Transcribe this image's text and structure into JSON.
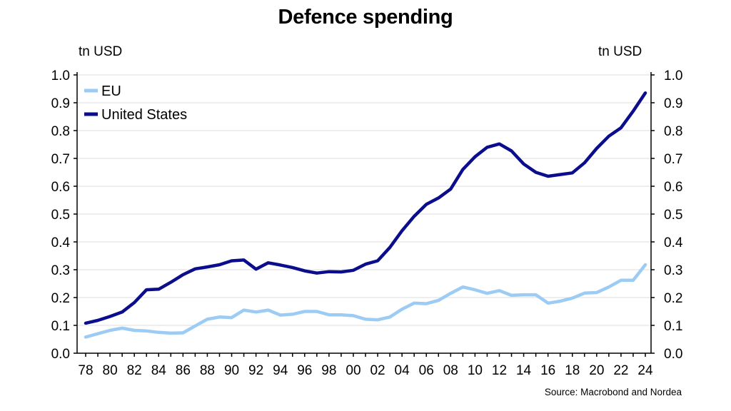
{
  "chart_data": {
    "type": "line",
    "title": "Defence spending",
    "ylabel_left": "tn USD",
    "ylabel_right": "tn USD",
    "source": "Source: Macrobond and Nordea",
    "ylim": [
      0.0,
      1.0
    ],
    "yticks": [
      "0.0",
      "0.1",
      "0.2",
      "0.3",
      "0.4",
      "0.5",
      "0.6",
      "0.7",
      "0.8",
      "0.9",
      "1.0"
    ],
    "xticks": [
      "78",
      "80",
      "82",
      "84",
      "86",
      "88",
      "90",
      "92",
      "94",
      "96",
      "98",
      "00",
      "02",
      "04",
      "06",
      "08",
      "10",
      "12",
      "14",
      "16",
      "18",
      "20",
      "22",
      "24"
    ],
    "grid": true,
    "legend": "top-left",
    "x": [
      1978,
      1979,
      1980,
      1981,
      1982,
      1983,
      1984,
      1985,
      1986,
      1987,
      1988,
      1989,
      1990,
      1991,
      1992,
      1993,
      1994,
      1995,
      1996,
      1997,
      1998,
      1999,
      2000,
      2001,
      2002,
      2003,
      2004,
      2005,
      2006,
      2007,
      2008,
      2009,
      2010,
      2011,
      2012,
      2013,
      2014,
      2015,
      2016,
      2017,
      2018,
      2019,
      2020,
      2021,
      2022,
      2023,
      2024
    ],
    "series": [
      {
        "name": "EU",
        "color": "#9ccbf3",
        "values": [
          0.058,
          0.07,
          0.082,
          0.09,
          0.082,
          0.08,
          0.075,
          0.072,
          0.073,
          0.098,
          0.122,
          0.13,
          0.128,
          0.155,
          0.148,
          0.155,
          0.137,
          0.14,
          0.15,
          0.15,
          0.138,
          0.138,
          0.135,
          0.122,
          0.12,
          0.13,
          0.158,
          0.18,
          0.178,
          0.19,
          0.215,
          0.238,
          0.228,
          0.215,
          0.225,
          0.208,
          0.21,
          0.21,
          0.18,
          0.187,
          0.198,
          0.216,
          0.218,
          0.238,
          0.262,
          0.262,
          0.318
        ]
      },
      {
        "name": "United States",
        "color": "#0b0d8c",
        "values": [
          0.108,
          0.118,
          0.132,
          0.148,
          0.182,
          0.228,
          0.23,
          0.255,
          0.282,
          0.303,
          0.31,
          0.318,
          0.332,
          0.335,
          0.302,
          0.325,
          0.317,
          0.308,
          0.296,
          0.288,
          0.293,
          0.292,
          0.298,
          0.32,
          0.332,
          0.38,
          0.44,
          0.492,
          0.535,
          0.558,
          0.59,
          0.66,
          0.706,
          0.74,
          0.752,
          0.727,
          0.68,
          0.65,
          0.636,
          0.642,
          0.648,
          0.684,
          0.736,
          0.78,
          0.81,
          0.87,
          0.935
        ]
      }
    ]
  }
}
